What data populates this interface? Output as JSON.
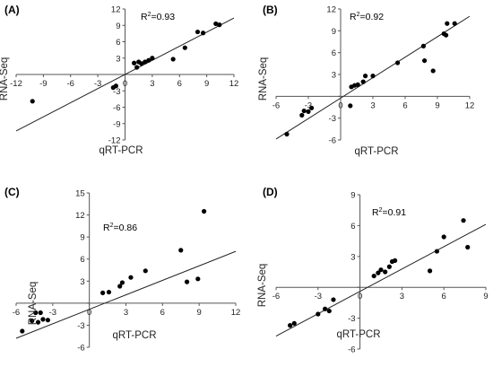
{
  "chart_data": [
    {
      "type": "scatter",
      "panel": "(A)",
      "r2_text": "=0.93",
      "xlabel": "qRT-PCR",
      "ylabel": "RNA-Seq",
      "xlim": [
        -12,
        12
      ],
      "ylim": [
        -12,
        12
      ],
      "xticks": [
        "-12",
        "-9",
        "-6",
        "-3",
        "0",
        "3",
        "6",
        "9",
        "12"
      ],
      "yticks": [
        "-12",
        "-9",
        "-6",
        "-3",
        "0",
        "3",
        "6",
        "9",
        "12"
      ],
      "trendline": {
        "x": [
          -12,
          12
        ],
        "y": [
          -10.35,
          10.35
        ]
      },
      "points": [
        {
          "x": -10.2,
          "y": -4.9
        },
        {
          "x": -1.3,
          "y": -2.4
        },
        {
          "x": -1.0,
          "y": -2.1
        },
        {
          "x": 1.0,
          "y": 2.1
        },
        {
          "x": 1.3,
          "y": 1.3
        },
        {
          "x": 1.5,
          "y": 2.3
        },
        {
          "x": 1.8,
          "y": 2.0
        },
        {
          "x": 2.2,
          "y": 2.3
        },
        {
          "x": 2.6,
          "y": 2.6
        },
        {
          "x": 3.0,
          "y": 3.0
        },
        {
          "x": 5.3,
          "y": 2.8
        },
        {
          "x": 6.6,
          "y": 4.9
        },
        {
          "x": 8.0,
          "y": 7.8
        },
        {
          "x": 8.6,
          "y": 7.6
        },
        {
          "x": 10.0,
          "y": 9.3
        },
        {
          "x": 10.4,
          "y": 9.1
        }
      ]
    },
    {
      "type": "scatter",
      "panel": "(B)",
      "r2_text": "=0.92",
      "xlabel": "qRT-PCR",
      "ylabel": "RNA-Seq",
      "xlim": [
        -6,
        12
      ],
      "ylim": [
        -6,
        12
      ],
      "xticks": [
        "-6",
        "-3",
        "0",
        "3",
        "6",
        "9",
        "12"
      ],
      "yticks": [
        "-6",
        "-3",
        "0",
        "3",
        "6",
        "9",
        "12"
      ],
      "trendline": {
        "x": [
          -6,
          12
        ],
        "y": [
          -5.87,
          11.0
        ]
      },
      "points": [
        {
          "x": -5.0,
          "y": -5.2
        },
        {
          "x": -3.6,
          "y": -2.6
        },
        {
          "x": -3.4,
          "y": -2.0
        },
        {
          "x": -3.0,
          "y": -2.1
        },
        {
          "x": -2.7,
          "y": -1.6
        },
        {
          "x": 0.9,
          "y": -1.3
        },
        {
          "x": 1.0,
          "y": 1.3
        },
        {
          "x": 1.3,
          "y": 1.5
        },
        {
          "x": 1.6,
          "y": 1.6
        },
        {
          "x": 2.1,
          "y": 2.0
        },
        {
          "x": 2.3,
          "y": 2.8
        },
        {
          "x": 3.0,
          "y": 2.8
        },
        {
          "x": 5.3,
          "y": 4.6
        },
        {
          "x": 7.7,
          "y": 6.9
        },
        {
          "x": 7.8,
          "y": 4.9
        },
        {
          "x": 8.6,
          "y": 3.5
        },
        {
          "x": 9.6,
          "y": 8.6
        },
        {
          "x": 9.8,
          "y": 8.4
        },
        {
          "x": 9.9,
          "y": 10.0
        },
        {
          "x": 10.6,
          "y": 10.0
        }
      ]
    },
    {
      "type": "scatter",
      "panel": "(C)",
      "r2_text": "=0.86",
      "xlabel": "qRT-PCR",
      "ylabel": "RNA-Seq",
      "xlim": [
        -6,
        12
      ],
      "ylim": [
        -6,
        15
      ],
      "xticks": [
        "-6",
        "-3",
        "0",
        "3",
        "6",
        "9",
        "12"
      ],
      "yticks": [
        "-6",
        "-3",
        "0",
        "3",
        "6",
        "9",
        "12",
        "15"
      ],
      "trendline": {
        "x": [
          -6,
          12
        ],
        "y": [
          -4.78,
          7.05
        ]
      },
      "points": [
        {
          "x": -5.5,
          "y": -3.8
        },
        {
          "x": -4.7,
          "y": -2.4
        },
        {
          "x": -4.4,
          "y": -1.3
        },
        {
          "x": -4.2,
          "y": -2.6
        },
        {
          "x": -4.0,
          "y": -1.3
        },
        {
          "x": -3.8,
          "y": -2.2
        },
        {
          "x": -3.4,
          "y": -2.3
        },
        {
          "x": 1.1,
          "y": 1.4
        },
        {
          "x": 1.6,
          "y": 1.5
        },
        {
          "x": 2.5,
          "y": 2.3
        },
        {
          "x": 2.7,
          "y": 2.8
        },
        {
          "x": 3.4,
          "y": 3.5
        },
        {
          "x": 4.6,
          "y": 4.4
        },
        {
          "x": 7.5,
          "y": 7.2
        },
        {
          "x": 8.0,
          "y": 2.9
        },
        {
          "x": 8.9,
          "y": 3.3
        },
        {
          "x": 9.4,
          "y": 12.5
        }
      ]
    },
    {
      "type": "scatter",
      "panel": "(D)",
      "r2_text": "=0.91",
      "xlabel": "qRT-PCR",
      "ylabel": "RNA-Seq",
      "xlim": [
        -6,
        9
      ],
      "ylim": [
        -6,
        9
      ],
      "xticks": [
        "-6",
        "-3",
        "0",
        "3",
        "6",
        "9"
      ],
      "yticks": [
        "-6",
        "-3",
        "0",
        "3",
        "6",
        "9"
      ],
      "trendline": {
        "x": [
          -6,
          9
        ],
        "y": [
          -4.74,
          6.12
        ]
      },
      "points": [
        {
          "x": -5.0,
          "y": -3.7
        },
        {
          "x": -4.7,
          "y": -3.5
        },
        {
          "x": -3.0,
          "y": -2.6
        },
        {
          "x": -2.5,
          "y": -2.1
        },
        {
          "x": -2.2,
          "y": -2.3
        },
        {
          "x": -1.9,
          "y": -1.2
        },
        {
          "x": 1.0,
          "y": 1.1
        },
        {
          "x": 1.3,
          "y": 1.4
        },
        {
          "x": 1.5,
          "y": 1.7
        },
        {
          "x": 1.8,
          "y": 1.5
        },
        {
          "x": 2.1,
          "y": 2.0
        },
        {
          "x": 2.3,
          "y": 2.5
        },
        {
          "x": 2.5,
          "y": 2.6
        },
        {
          "x": 5.0,
          "y": 1.6
        },
        {
          "x": 5.5,
          "y": 3.5
        },
        {
          "x": 6.0,
          "y": 4.9
        },
        {
          "x": 7.4,
          "y": 6.5
        },
        {
          "x": 7.7,
          "y": 3.9
        }
      ]
    }
  ]
}
